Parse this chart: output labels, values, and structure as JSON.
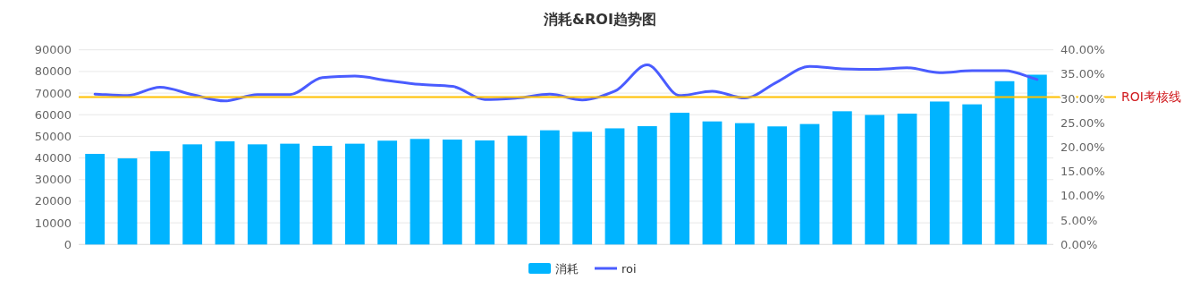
{
  "chart_data": {
    "type": "bar",
    "title": "消耗&ROI趋势图",
    "categories": [
      null,
      null,
      null,
      null,
      null,
      null,
      null,
      null,
      null,
      null,
      null,
      null,
      null,
      null,
      null,
      null,
      null,
      null,
      null,
      null,
      null,
      null,
      null,
      null,
      null,
      null,
      null,
      null,
      null,
      null
    ],
    "series": [
      {
        "name": "消耗",
        "color": "#00b4ff",
        "values": [
          41900,
          39800,
          43100,
          46300,
          47700,
          46300,
          46600,
          45600,
          46600,
          48000,
          48800,
          48500,
          48100,
          50300,
          52800,
          52100,
          53700,
          54700,
          60900,
          56900,
          56100,
          54600,
          55700,
          61600,
          59900,
          60500,
          66100,
          64800,
          75500,
          78500
        ]
      },
      {
        "name": "roi",
        "type": "line",
        "axis": "y2",
        "color": "#4a5cff",
        "values": [
          30.9,
          30.6,
          32.3,
          30.8,
          29.5,
          30.8,
          30.8,
          34.3,
          34.6,
          33.7,
          32.9,
          32.5,
          29.8,
          30.1,
          30.9,
          29.7,
          31.5,
          36.9,
          30.6,
          31.5,
          30.1,
          33.4,
          36.6,
          36.1,
          36.0,
          36.3,
          35.3,
          35.7,
          35.7,
          33.9
        ]
      }
    ],
    "ylim": [
      0,
      90000
    ],
    "yticks": [
      0,
      10000,
      20000,
      30000,
      40000,
      50000,
      60000,
      70000,
      80000,
      90000
    ],
    "y2lim": [
      0,
      40
    ],
    "y2ticks": [
      {
        "value": 0,
        "label": "0.00%"
      },
      {
        "value": 5,
        "label": "5.00%"
      },
      {
        "value": 10,
        "label": "10.00%"
      },
      {
        "value": 15,
        "label": "15.00%"
      },
      {
        "value": 20,
        "label": "20.00%"
      },
      {
        "value": 25,
        "label": "25.00%"
      },
      {
        "value": 30,
        "label": "30.00%"
      },
      {
        "value": 35,
        "label": "35.00%"
      },
      {
        "value": 40,
        "label": "40.00%"
      }
    ],
    "ref_lines": [
      {
        "axis": "y2",
        "value": 30.3,
        "label": "ROI考核线",
        "color": "#ffc000"
      }
    ],
    "grid": "y",
    "legend": "bottom"
  }
}
